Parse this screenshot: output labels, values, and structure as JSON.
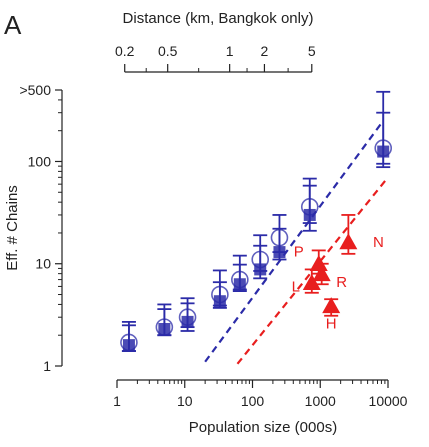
{
  "chart_data": {
    "type": "scatter",
    "panel_label": "A",
    "xlabel": "Population size (000s)",
    "ylabel": "Eff. # Chains",
    "top_axis_label": "Distance (km, Bangkok only)",
    "xscale": "log",
    "yscale": "log",
    "xlim": [
      1,
      10000
    ],
    "ylim": [
      1,
      500
    ],
    "x_ticks": [
      {
        "value": 1,
        "label": "1"
      },
      {
        "value": 10,
        "label": "10"
      },
      {
        "value": 100,
        "label": "100"
      },
      {
        "value": 1000,
        "label": "1000"
      },
      {
        "value": 10000,
        "label": "10000"
      }
    ],
    "y_ticks": [
      {
        "value": 1,
        "label": "1"
      },
      {
        "value": 10,
        "label": "10"
      },
      {
        "value": 100,
        "label": "100"
      },
      {
        "value": 500,
        "label": ">500"
      }
    ],
    "top_ticks": [
      {
        "label": "0.2",
        "pop": 1.3
      },
      {
        "label": "0.5",
        "pop": 5.6
      },
      {
        "label": "1",
        "pop": 46
      },
      {
        "label": "2",
        "pop": 150
      },
      {
        "label": "5",
        "pop": 750
      }
    ],
    "colors": {
      "blue": "#2b2ba8",
      "red": "#e81e1e",
      "axis": "#222222"
    },
    "series": [
      {
        "color": "#2b2ba8",
        "marker": "square",
        "points": [
          {
            "x": 1.5,
            "y": 1.6,
            "ylo": 1.4,
            "yhi": 2.5
          },
          {
            "x": 5,
            "y": 2.3,
            "ylo": 2.0,
            "yhi": 3.6
          },
          {
            "x": 11,
            "y": 2.7,
            "ylo": 2.2,
            "yhi": 4.1
          },
          {
            "x": 33,
            "y": 4.3,
            "ylo": 3.7,
            "yhi": 6.6
          },
          {
            "x": 65,
            "y": 6.3,
            "ylo": 5.4,
            "yhi": 9.8
          },
          {
            "x": 130,
            "y": 8.8,
            "ylo": 7.2,
            "yhi": 15
          },
          {
            "x": 250,
            "y": 13,
            "ylo": 11,
            "yhi": 22
          },
          {
            "x": 700,
            "y": 30,
            "ylo": 21,
            "yhi": 58
          },
          {
            "x": 8500,
            "y": 125,
            "ylo": 88,
            "yhi": 480
          }
        ]
      },
      {
        "color": "#2b2ba8",
        "marker": "circle",
        "points": [
          {
            "x": 1.5,
            "y": 1.7,
            "ylo": 1.4,
            "yhi": 2.7
          },
          {
            "x": 5,
            "y": 2.4,
            "ylo": 2.0,
            "yhi": 4.0
          },
          {
            "x": 11,
            "y": 3.0,
            "ylo": 2.4,
            "yhi": 4.6
          },
          {
            "x": 33,
            "y": 5.0,
            "ylo": 3.9,
            "yhi": 8.6
          },
          {
            "x": 65,
            "y": 7.0,
            "ylo": 5.6,
            "yhi": 12
          },
          {
            "x": 130,
            "y": 11,
            "ylo": 8.5,
            "yhi": 19
          },
          {
            "x": 250,
            "y": 18,
            "ylo": 13,
            "yhi": 30
          },
          {
            "x": 700,
            "y": 36,
            "ylo": 25,
            "yhi": 68
          },
          {
            "x": 8500,
            "y": 135,
            "ylo": 95,
            "yhi": 300
          }
        ]
      },
      {
        "color": "#e81e1e",
        "marker": "triangle",
        "points": [
          {
            "label": "P",
            "x": 950,
            "y": 9.8,
            "ylo": 8.0,
            "yhi": 13.5
          },
          {
            "label": "R",
            "x": 1050,
            "y": 7.8,
            "ylo": 6.3,
            "yhi": 10
          },
          {
            "label": "L",
            "x": 750,
            "y": 6.4,
            "ylo": 5.2,
            "yhi": 8.8
          },
          {
            "label": "H",
            "x": 1450,
            "y": 3.8,
            "ylo": 3.1,
            "yhi": 4.5
          },
          {
            "label": "N",
            "x": 2600,
            "y": 16,
            "ylo": 12.5,
            "yhi": 30
          }
        ]
      }
    ],
    "trend_lines": [
      {
        "color": "#2b2ba8",
        "x": [
          20,
          8500
        ],
        "y": [
          1.1,
          250
        ]
      },
      {
        "color": "#e81e1e",
        "x": [
          60,
          10000
        ],
        "y": [
          1.05,
          70
        ]
      }
    ]
  }
}
